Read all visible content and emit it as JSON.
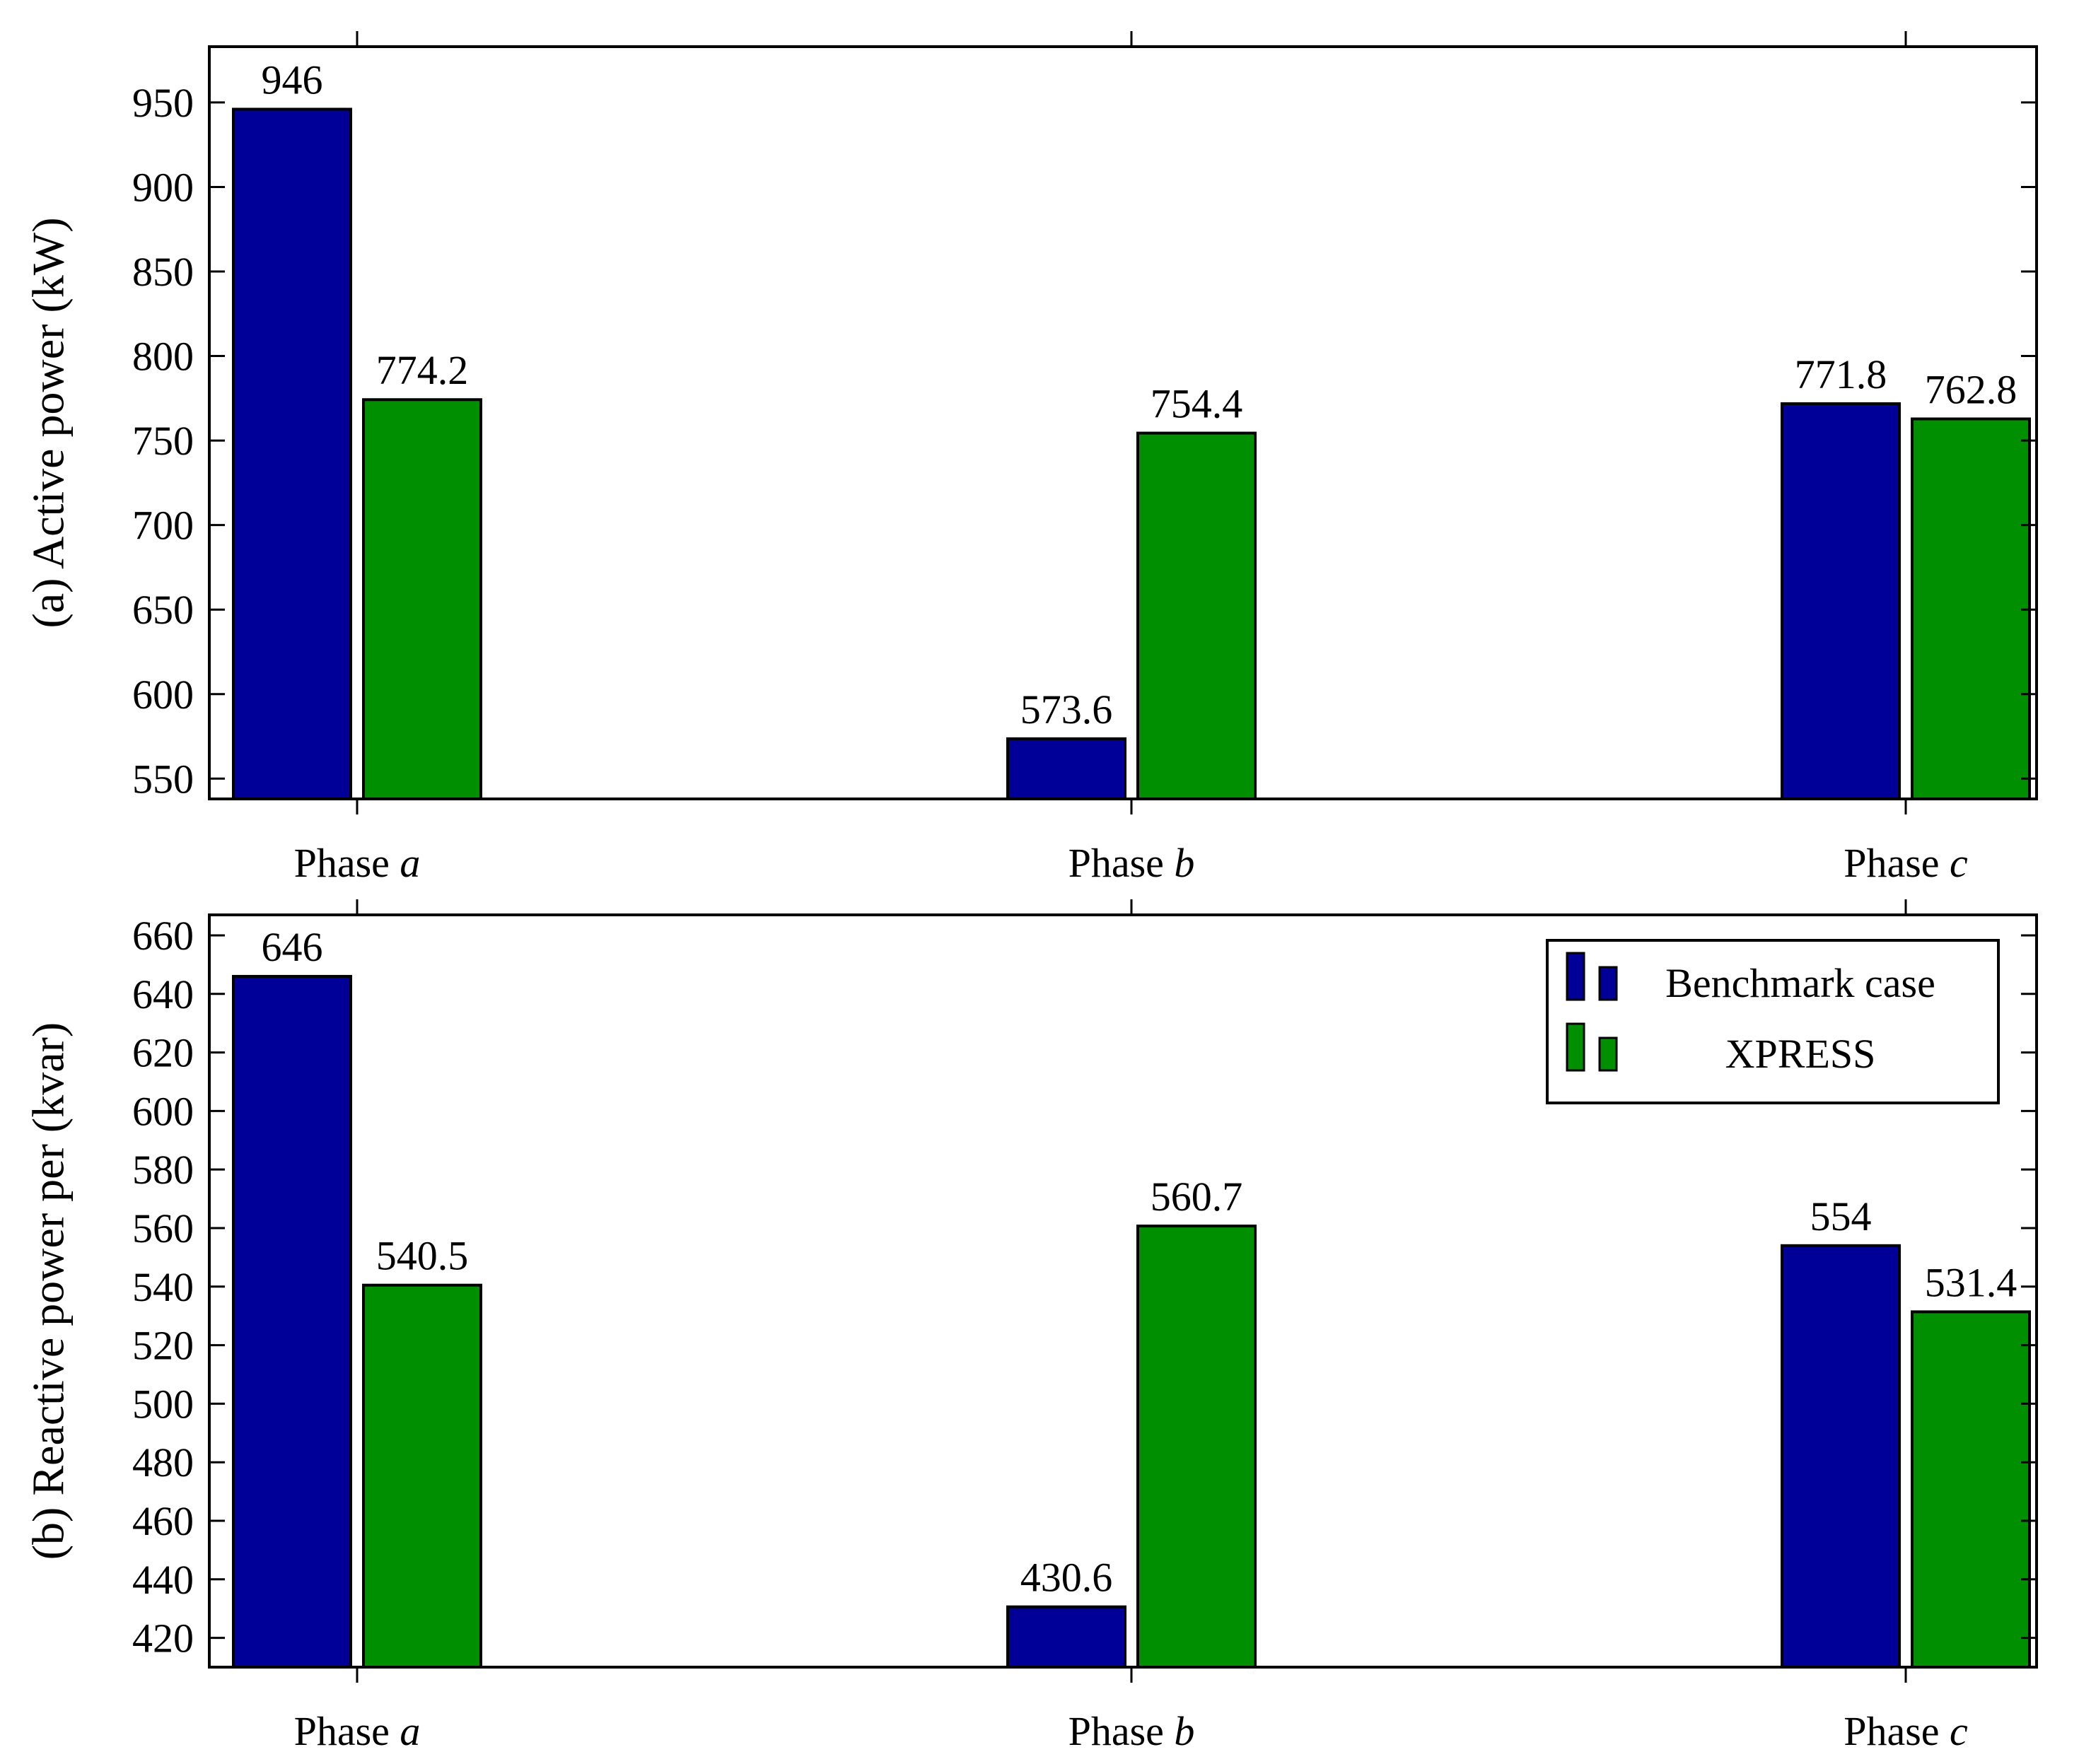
{
  "colors": {
    "benchmark": "#000099",
    "xpress": "#008f00",
    "axis": "#000000"
  },
  "chart_data": [
    {
      "type": "bar",
      "categories": [
        "Phase a",
        "Phase b",
        "Phase c"
      ],
      "category_parts": [
        {
          "prefix": "Phase ",
          "var": "a"
        },
        {
          "prefix": "Phase ",
          "var": "b"
        },
        {
          "prefix": "Phase ",
          "var": "c"
        }
      ],
      "ylabel": "(a) Active power (kW)",
      "ylim": [
        538,
        983
      ],
      "yticks": [
        550,
        600,
        650,
        700,
        750,
        800,
        850,
        900,
        950
      ],
      "series": [
        {
          "name": "Benchmark case",
          "values": [
            946,
            573.6,
            771.8
          ],
          "labels": [
            "946",
            "573.6",
            "771.8"
          ]
        },
        {
          "name": "XPRESS",
          "values": [
            774.2,
            754.4,
            762.8
          ],
          "labels": [
            "774.2",
            "754.4",
            "762.8"
          ]
        }
      ],
      "grid": false
    },
    {
      "type": "bar",
      "categories": [
        "Phase a",
        "Phase b",
        "Phase c"
      ],
      "category_parts": [
        {
          "prefix": "Phase ",
          "var": "a"
        },
        {
          "prefix": "Phase ",
          "var": "b"
        },
        {
          "prefix": "Phase ",
          "var": "c"
        }
      ],
      "ylabel": "(b) Reactive power per (kvar)",
      "ylim": [
        410,
        667
      ],
      "yticks": [
        420,
        440,
        460,
        480,
        500,
        520,
        540,
        560,
        580,
        600,
        620,
        640,
        660
      ],
      "series": [
        {
          "name": "Benchmark case",
          "values": [
            646,
            430.6,
            554
          ],
          "labels": [
            "646",
            "430.6",
            "554"
          ]
        },
        {
          "name": "XPRESS",
          "values": [
            540.5,
            560.7,
            531.4
          ],
          "labels": [
            "540.5",
            "560.7",
            "531.4"
          ]
        }
      ],
      "legend": {
        "placement": "top-right",
        "entries": [
          {
            "label": "Benchmark case",
            "series": 0
          },
          {
            "label": "XPRESS",
            "series": 1
          }
        ]
      },
      "grid": false
    }
  ]
}
